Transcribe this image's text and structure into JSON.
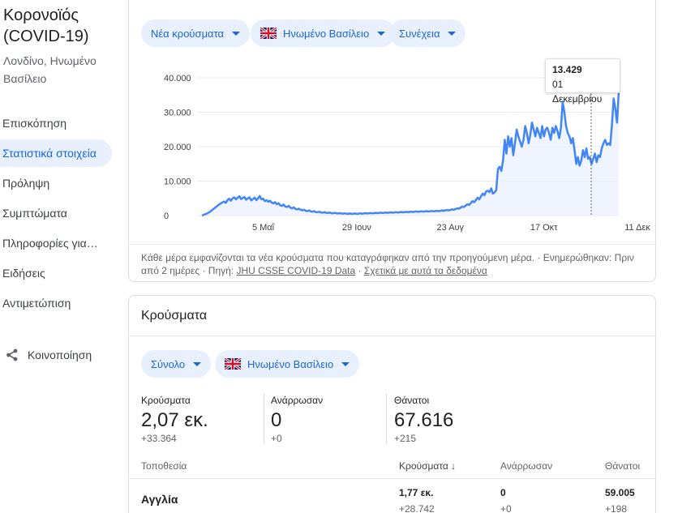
{
  "sidebar": {
    "title_line1": "Κορονοϊός",
    "title_line2": "(COVID-19)",
    "location_line1": "Λονδίνο, Ηνωμένο",
    "location_line2": "Βασίλειο",
    "items": [
      {
        "label": "Επισκόπηση",
        "active": false
      },
      {
        "label": "Στατιστικά στοιχεία",
        "active": true
      },
      {
        "label": "Πρόληψη",
        "active": false
      },
      {
        "label": "Συμπτώματα",
        "active": false
      },
      {
        "label": "Πληροφορίες για…",
        "active": false
      },
      {
        "label": "Ειδήσεις",
        "active": false
      },
      {
        "label": "Αντιμετώπιση",
        "active": false
      }
    ],
    "share_label": "Κοινοποίηση"
  },
  "chart_card": {
    "filters": {
      "metric": "Νέα κρούσματα",
      "region": "Ηνωμένο Βασίλειο",
      "mode": "Συνέχεια"
    },
    "tooltip": {
      "value": "13.429",
      "date": "01 Δεκεμβρίου"
    },
    "footnote": {
      "text": "Κάθε μέρα εμφανίζονται τα νέα κρούσματα που καταγράφηκαν από την προηγούμενη μέρα. · Ενημερώθηκαν: Πριν από 2 ημέρες · Πηγή: ",
      "source_link": "JHU CSSE COVID-19 Data",
      "sep": " · ",
      "about_link": "Σχετικά με αυτά τα δεδομένα"
    }
  },
  "chart_data": {
    "type": "area",
    "title": "",
    "xlabel": "",
    "ylabel": "",
    "ylim": [
      0,
      40000
    ],
    "y_ticks": [
      "0",
      "10.000",
      "20.000",
      "30.000",
      "40.000"
    ],
    "y_tick_values": [
      0,
      10000,
      20000,
      30000,
      40000
    ],
    "x_ticks": [
      "5 Μαΐ",
      "29 Ιουν",
      "23 Αυγ",
      "17 Οκτ",
      "11 Δεκ"
    ],
    "x_tick_index": [
      36,
      91,
      146,
      201,
      256
    ],
    "grid": true,
    "color": "#4285f4",
    "fill_color": "#e8f0fe",
    "series": [
      {
        "values": [
          0,
          200,
          400,
          600,
          900,
          1200,
          1600,
          2000,
          2400,
          2800,
          3200,
          3500,
          3800,
          4100,
          3700,
          4500,
          4900,
          4300,
          5000,
          5300,
          4700,
          5200,
          5600,
          4800,
          5100,
          5400,
          4600,
          5000,
          5300,
          4400,
          4800,
          5200,
          4500,
          5000,
          5700,
          4700,
          4900,
          4200,
          4500,
          4000,
          4300,
          3800,
          3500,
          3900,
          3300,
          3600,
          3000,
          2800,
          3200,
          2600,
          2500,
          2800,
          2300,
          2100,
          2400,
          1900,
          1800,
          2000,
          1700,
          1500,
          1700,
          1400,
          1300,
          1500,
          1200,
          1100,
          1300,
          1000,
          1000,
          1100,
          900,
          850,
          1000,
          800,
          750,
          900,
          700,
          650,
          800,
          650,
          600,
          700,
          600,
          550,
          650,
          550,
          500,
          600,
          500,
          550,
          600,
          500,
          550,
          650,
          550,
          600,
          700,
          600,
          650,
          750,
          650,
          700,
          800,
          700,
          750,
          850,
          750,
          800,
          900,
          800,
          850,
          950,
          850,
          900,
          1000,
          900,
          950,
          1050,
          950,
          1000,
          1100,
          1000,
          1050,
          1150,
          1050,
          1100,
          1200,
          1100,
          1150,
          1250,
          1150,
          1200,
          1300,
          1200,
          1250,
          1350,
          1250,
          1300,
          1400,
          1300,
          1350,
          1500,
          1400,
          1500,
          1600,
          1500,
          1650,
          1800,
          1700,
          1900,
          2100,
          2000,
          2300,
          2600,
          2500,
          2900,
          3300,
          3100,
          3600,
          4200,
          3900,
          4500,
          5200,
          4700,
          5600,
          6400,
          5900,
          7000,
          7200,
          6800,
          7900,
          6400,
          6700,
          7400,
          13500,
          14200,
          13000,
          16000,
          22000,
          18000,
          23000,
          20000,
          22500,
          17500,
          21000,
          25000,
          23000,
          21500,
          20000,
          22000,
          26000,
          24000,
          21000,
          23500,
          27000,
          25000,
          23000,
          25500,
          24000,
          22500,
          26000,
          23000,
          25000,
          25500,
          24000,
          22000,
          25500,
          24000,
          26000,
          24500,
          22500,
          25500,
          33000,
          30000,
          26000,
          24000,
          23000,
          21000,
          22500,
          19000,
          15000,
          17000,
          14500,
          16000,
          19000,
          17000,
          19500,
          16500,
          17000,
          15000,
          16500,
          18000,
          15500,
          17500,
          17000,
          19500,
          21000,
          22000,
          20500,
          21000,
          20500,
          26500,
          34000,
          31000,
          27000,
          36000
        ]
      }
    ]
  },
  "cases_card": {
    "title": "Κρούσματα",
    "filters": {
      "scope": "Σύνολο",
      "region": "Ηνωμένο Βασίλειο"
    },
    "stats": [
      {
        "label": "Κρούσματα",
        "value": "2,07 εκ.",
        "delta": "+33.364"
      },
      {
        "label": "Ανάρρωσαν",
        "value": "0",
        "delta": "+0"
      },
      {
        "label": "Θάνατοι",
        "value": "67.616",
        "delta": "+215"
      }
    ],
    "table": {
      "headers": {
        "location": "Τοποθεσία",
        "cases": "Κρούσματα",
        "recovered": "Ανάρρωσαν",
        "deaths": "Θάνατοι"
      },
      "rows": [
        {
          "name": "Αγγλία",
          "cases": "1,77 εκ.",
          "cases_delta": "+28.742",
          "recovered": "0",
          "recovered_delta": "+0",
          "deaths": "59.005",
          "deaths_delta": "+198"
        }
      ]
    }
  }
}
